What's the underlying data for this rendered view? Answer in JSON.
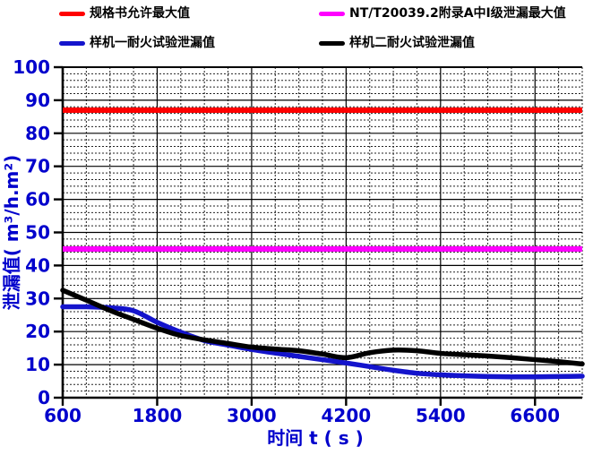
{
  "legend": {
    "items": [
      {
        "label": "规格书允许最大值",
        "color": "#FF0000"
      },
      {
        "label": "NT/T20039.2附录A中I级泄漏最大值",
        "color": "#FF00FF"
      },
      {
        "label": "样机一耐火试验泄漏值",
        "color": "#1414CC"
      },
      {
        "label": "样机二耐火试验泄漏值",
        "color": "#000000"
      }
    ]
  },
  "axes": {
    "x_title": "时间 t ( s )",
    "y_title": "泄漏值( m³/h.m²)",
    "x_ticks": [
      600,
      1800,
      3000,
      4200,
      5400,
      6600
    ],
    "y_ticks": [
      0,
      10,
      20,
      30,
      40,
      50,
      60,
      70,
      80,
      90,
      100
    ],
    "label_color": "#0000CC"
  },
  "chart_data": {
    "type": "line",
    "title": "",
    "xlabel": "时间 t ( s )",
    "ylabel": "泄漏值( m³/h.m²)",
    "xlim": [
      600,
      7200
    ],
    "ylim": [
      0,
      100
    ],
    "x_major_step": 1200,
    "x_minor_step": 300,
    "y_major_step": 10,
    "y_minor_step": 2,
    "grid": "major solid, minor dashed",
    "legend_position": "top",
    "series": [
      {
        "name": "规格书允许最大值",
        "type": "hline",
        "color": "#FF0000",
        "value": 87
      },
      {
        "name": "NT/T20039.2附录A中I级泄漏最大值",
        "type": "hline",
        "color": "#FF00FF",
        "value": 45
      },
      {
        "name": "样机一耐火试验泄漏值",
        "type": "curve",
        "color": "#1414CC",
        "x": [
          600,
          900,
          1200,
          1500,
          1800,
          2100,
          2400,
          2700,
          3000,
          3300,
          3600,
          3900,
          4200,
          4500,
          4800,
          5100,
          5400,
          5700,
          6000,
          6300,
          6600,
          6900,
          7200
        ],
        "y": [
          27.5,
          27.5,
          27.2,
          26.3,
          22.8,
          19.8,
          17.3,
          15.9,
          14.6,
          13.5,
          12.5,
          11.5,
          10.5,
          9.4,
          8.3,
          7.4,
          6.9,
          6.6,
          6.4,
          6.3,
          6.3,
          6.4,
          6.5
        ]
      },
      {
        "name": "样机二耐火试验泄漏值",
        "type": "curve",
        "color": "#000000",
        "x": [
          600,
          900,
          1200,
          1500,
          1800,
          2100,
          2400,
          2700,
          3000,
          3300,
          3600,
          3900,
          4200,
          4500,
          4800,
          5100,
          5400,
          5700,
          6000,
          6300,
          6600,
          6900,
          7200
        ],
        "y": [
          32.5,
          29.5,
          26.4,
          23.7,
          21.0,
          18.8,
          17.5,
          16.4,
          15.3,
          14.7,
          14.2,
          13.2,
          12.1,
          13.6,
          14.4,
          14.2,
          13.4,
          13.0,
          12.6,
          12.1,
          11.5,
          10.9,
          10.2
        ]
      }
    ]
  }
}
